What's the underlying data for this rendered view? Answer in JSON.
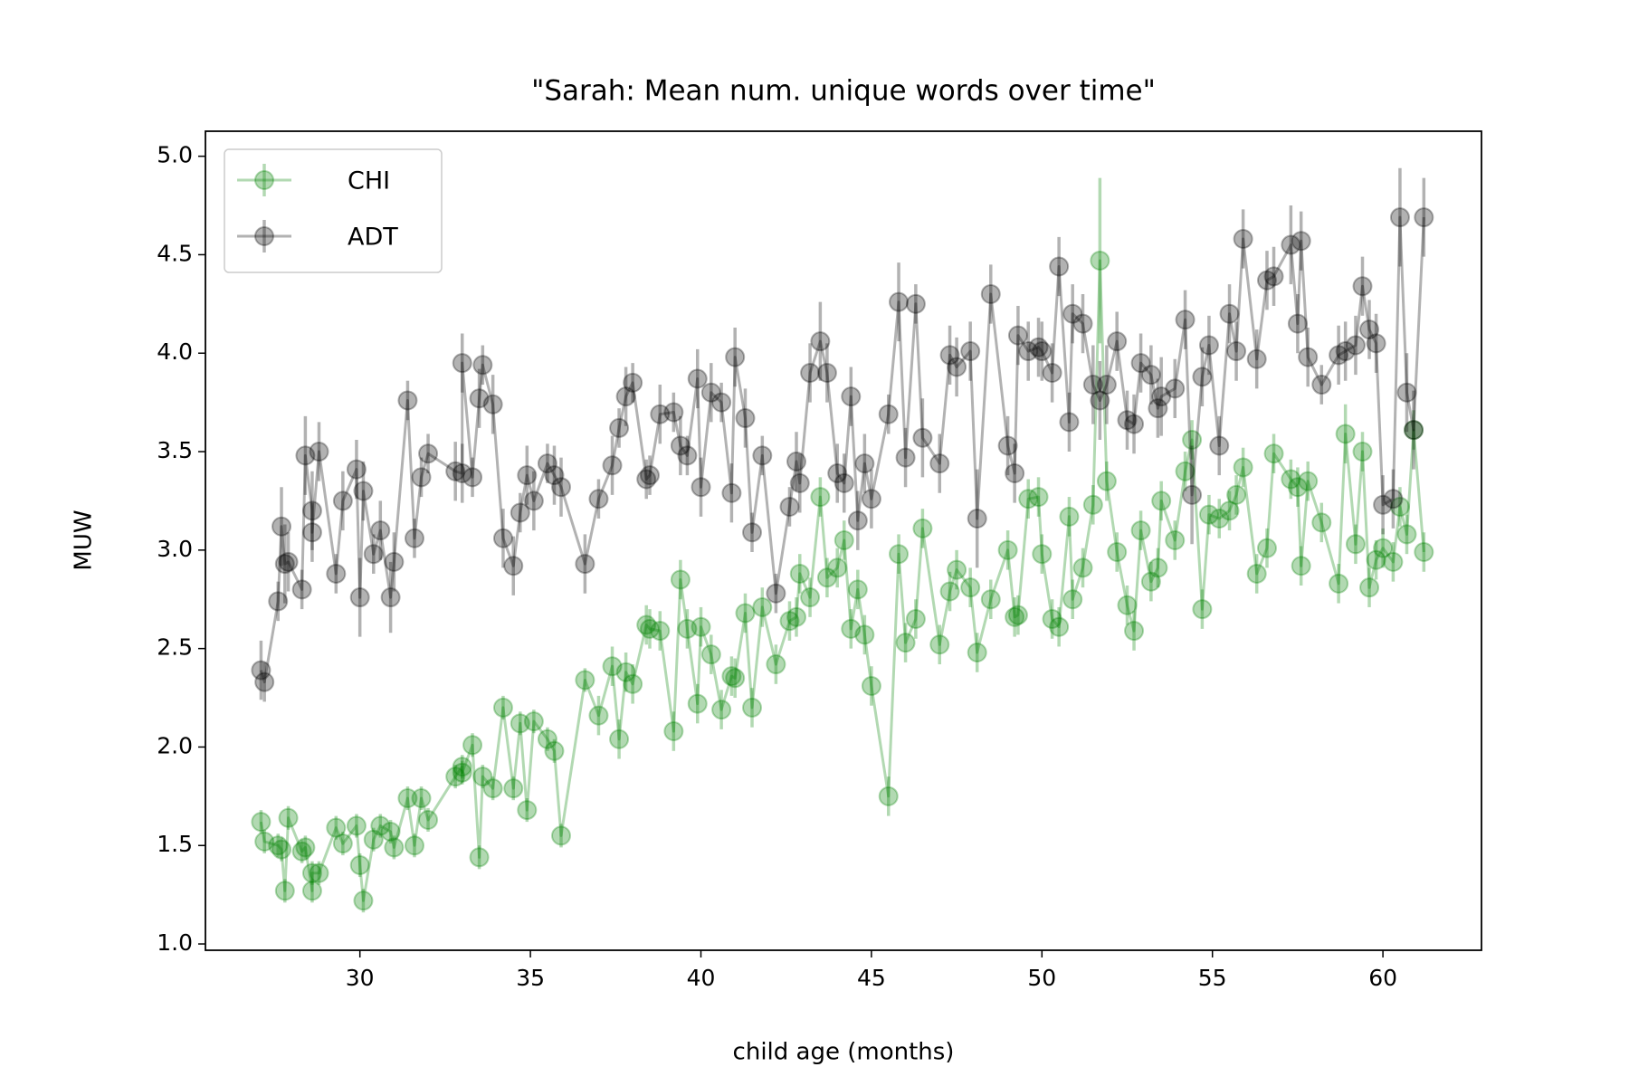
{
  "chart_data": {
    "type": "line",
    "title": "\"Sarah: Mean num. unique words over time\"",
    "x_label": "child age (months)",
    "y_label": "MUW",
    "x": [
      27.1,
      27.2,
      27.6,
      27.7,
      27.8,
      27.9,
      28.3,
      28.4,
      28.6,
      28.6,
      28.8,
      29.3,
      29.5,
      29.9,
      30.0,
      30.1,
      30.4,
      30.6,
      30.9,
      31.0,
      31.4,
      31.6,
      31.8,
      32.0,
      32.8,
      33.0,
      33.0,
      33.3,
      33.5,
      33.6,
      33.9,
      34.2,
      34.5,
      34.7,
      34.9,
      35.1,
      35.5,
      35.7,
      35.9,
      36.6,
      37.0,
      37.4,
      37.6,
      37.8,
      38.0,
      38.4,
      38.5,
      38.8,
      39.2,
      39.4,
      39.6,
      39.9,
      40.0,
      40.3,
      40.6,
      40.9,
      41.0,
      41.3,
      41.5,
      41.8,
      42.2,
      42.6,
      42.8,
      42.9,
      43.2,
      43.5,
      43.7,
      44.0,
      44.2,
      44.4,
      44.6,
      44.8,
      45.0,
      45.5,
      45.8,
      46.0,
      46.3,
      46.5,
      47.0,
      47.3,
      47.5,
      47.9,
      48.1,
      48.5,
      49.0,
      49.2,
      49.3,
      49.6,
      49.9,
      50.0,
      50.3,
      50.5,
      50.8,
      50.9,
      51.2,
      51.5,
      51.7,
      51.9,
      52.2,
      52.5,
      52.7,
      52.9,
      53.2,
      53.4,
      53.5,
      53.9,
      54.2,
      54.4,
      54.7,
      54.9,
      55.2,
      55.5,
      55.7,
      55.9,
      56.3,
      56.6,
      56.8,
      57.3,
      57.5,
      57.6,
      57.8,
      58.2,
      58.7,
      58.9,
      59.2,
      59.4,
      59.6,
      59.8,
      60.0,
      60.3,
      60.5,
      60.7,
      60.9,
      61.2
    ],
    "series": [
      {
        "name": "CHI",
        "color": "#008000",
        "values": [
          1.62,
          1.52,
          1.5,
          1.48,
          1.27,
          1.64,
          1.47,
          1.49,
          1.27,
          1.36,
          1.36,
          1.59,
          1.51,
          1.6,
          1.4,
          1.22,
          1.53,
          1.6,
          1.57,
          1.49,
          1.74,
          1.5,
          1.74,
          1.63,
          1.85,
          1.9,
          1.87,
          2.01,
          1.44,
          1.85,
          1.79,
          2.2,
          1.79,
          2.12,
          1.68,
          2.13,
          2.04,
          1.98,
          1.55,
          2.34,
          2.16,
          2.41,
          2.04,
          2.38,
          2.32,
          2.62,
          2.6,
          2.59,
          2.08,
          2.85,
          2.6,
          2.22,
          2.61,
          2.47,
          2.19,
          2.36,
          2.35,
          2.68,
          2.2,
          2.71,
          2.42,
          2.64,
          2.66,
          2.88,
          2.76,
          3.27,
          2.86,
          2.91,
          3.05,
          2.6,
          2.8,
          2.57,
          2.31,
          1.75,
          2.98,
          2.53,
          2.65,
          3.11,
          2.52,
          2.79,
          2.9,
          2.81,
          2.48,
          2.75,
          3.0,
          2.66,
          2.67,
          3.26,
          3.27,
          2.98,
          2.65,
          2.61,
          3.17,
          2.75,
          2.91,
          3.23,
          4.47,
          3.35,
          2.99,
          2.72,
          2.59,
          3.1,
          2.84,
          2.91,
          3.25,
          3.05,
          3.4,
          3.56,
          2.7,
          3.18,
          3.16,
          3.2,
          3.28,
          3.42,
          2.88,
          3.01,
          3.49,
          3.36,
          3.32,
          2.92,
          3.35,
          3.14,
          2.83,
          3.59,
          3.03,
          3.5,
          2.81,
          2.95,
          3.01,
          2.94,
          3.22,
          3.08,
          3.61,
          2.99
        ],
        "errors": [
          0.06,
          0.06,
          0.06,
          0.06,
          0.06,
          0.06,
          0.06,
          0.06,
          0.06,
          0.06,
          0.06,
          0.06,
          0.06,
          0.06,
          0.06,
          0.06,
          0.06,
          0.06,
          0.06,
          0.06,
          0.06,
          0.06,
          0.06,
          0.06,
          0.06,
          0.06,
          0.06,
          0.06,
          0.06,
          0.06,
          0.06,
          0.06,
          0.06,
          0.06,
          0.06,
          0.06,
          0.06,
          0.06,
          0.06,
          0.06,
          0.1,
          0.1,
          0.1,
          0.1,
          0.1,
          0.1,
          0.1,
          0.1,
          0.1,
          0.1,
          0.1,
          0.1,
          0.1,
          0.1,
          0.1,
          0.1,
          0.1,
          0.1,
          0.1,
          0.1,
          0.1,
          0.1,
          0.1,
          0.1,
          0.1,
          0.1,
          0.1,
          0.1,
          0.1,
          0.1,
          0.1,
          0.1,
          0.1,
          0.1,
          0.1,
          0.1,
          0.1,
          0.1,
          0.1,
          0.1,
          0.1,
          0.1,
          0.1,
          0.1,
          0.1,
          0.1,
          0.1,
          0.1,
          0.1,
          0.1,
          0.1,
          0.1,
          0.1,
          0.1,
          0.1,
          0.1,
          0.42,
          0.1,
          0.1,
          0.1,
          0.1,
          0.1,
          0.1,
          0.1,
          0.1,
          0.1,
          0.1,
          0.1,
          0.1,
          0.1,
          0.1,
          0.1,
          0.1,
          0.1,
          0.1,
          0.1,
          0.1,
          0.1,
          0.1,
          0.1,
          0.1,
          0.1,
          0.1,
          0.15,
          0.1,
          0.1,
          0.1,
          0.1,
          0.1,
          0.1,
          0.1,
          0.1,
          0.1,
          0.1
        ]
      },
      {
        "name": "ADT",
        "color": "#000000",
        "values": [
          2.39,
          2.33,
          2.74,
          3.12,
          2.93,
          2.94,
          2.8,
          3.48,
          3.2,
          3.09,
          3.5,
          2.88,
          3.25,
          3.41,
          2.76,
          3.3,
          2.98,
          3.1,
          2.76,
          2.94,
          3.76,
          3.06,
          3.37,
          3.49,
          3.4,
          3.39,
          3.95,
          3.37,
          3.77,
          3.94,
          3.74,
          3.06,
          2.92,
          3.19,
          3.38,
          3.25,
          3.44,
          3.38,
          3.32,
          2.93,
          3.26,
          3.43,
          3.62,
          3.78,
          3.85,
          3.36,
          3.38,
          3.69,
          3.7,
          3.53,
          3.48,
          3.87,
          3.32,
          3.8,
          3.75,
          3.29,
          3.98,
          3.67,
          3.09,
          3.48,
          2.78,
          3.22,
          3.45,
          3.34,
          3.9,
          4.06,
          3.9,
          3.39,
          3.34,
          3.78,
          3.15,
          3.44,
          3.26,
          3.69,
          4.26,
          3.47,
          4.25,
          3.57,
          3.44,
          3.99,
          3.93,
          4.01,
          3.16,
          4.3,
          3.53,
          3.39,
          4.09,
          4.01,
          4.03,
          4.01,
          3.9,
          4.44,
          3.65,
          4.2,
          4.15,
          3.84,
          3.76,
          3.84,
          4.06,
          3.66,
          3.64,
          3.95,
          3.89,
          3.72,
          3.78,
          3.82,
          4.17,
          3.28,
          3.88,
          4.04,
          3.53,
          4.2,
          4.01,
          4.58,
          3.97,
          4.37,
          4.39,
          4.55,
          4.15,
          4.57,
          3.98,
          3.84,
          3.99,
          4.01,
          4.04,
          4.34,
          4.12,
          4.05,
          3.23,
          3.26,
          4.69,
          3.8,
          3.61,
          4.69
        ],
        "errors": [
          0.15,
          0.1,
          0.1,
          0.2,
          0.2,
          0.15,
          0.1,
          0.2,
          0.2,
          0.15,
          0.15,
          0.1,
          0.15,
          0.15,
          0.2,
          0.15,
          0.1,
          0.15,
          0.18,
          0.15,
          0.1,
          0.1,
          0.1,
          0.1,
          0.15,
          0.15,
          0.15,
          0.1,
          0.15,
          0.1,
          0.15,
          0.15,
          0.15,
          0.1,
          0.15,
          0.15,
          0.1,
          0.15,
          0.15,
          0.15,
          0.1,
          0.15,
          0.1,
          0.15,
          0.1,
          0.1,
          0.1,
          0.15,
          0.1,
          0.15,
          0.1,
          0.15,
          0.15,
          0.15,
          0.1,
          0.15,
          0.15,
          0.15,
          0.1,
          0.1,
          0.1,
          0.1,
          0.15,
          0.15,
          0.15,
          0.2,
          0.15,
          0.15,
          0.15,
          0.15,
          0.15,
          0.15,
          0.15,
          0.1,
          0.2,
          0.15,
          0.1,
          0.2,
          0.15,
          0.15,
          0.15,
          0.15,
          0.25,
          0.15,
          0.15,
          0.15,
          0.15,
          0.15,
          0.15,
          0.15,
          0.15,
          0.15,
          0.15,
          0.15,
          0.15,
          0.2,
          0.2,
          0.2,
          0.15,
          0.15,
          0.15,
          0.15,
          0.15,
          0.15,
          0.2,
          0.15,
          0.15,
          0.25,
          0.15,
          0.15,
          0.15,
          0.15,
          0.15,
          0.15,
          0.15,
          0.15,
          0.15,
          0.2,
          0.15,
          0.15,
          0.15,
          0.1,
          0.15,
          0.15,
          0.15,
          0.15,
          0.15,
          0.15,
          0.15,
          0.15,
          0.25,
          0.2,
          0.2,
          0.2
        ]
      }
    ],
    "alpha": 0.3,
    "xlim": [
      25.47,
      62.89
    ],
    "ylim": [
      0.968,
      5.127
    ],
    "xticks": [
      30,
      35,
      40,
      45,
      50,
      55,
      60
    ],
    "yticks": [
      {
        "value": 1.0,
        "label": "1.0"
      },
      1.5,
      {
        "value": 2.0,
        "label": "2.0"
      },
      2.5,
      {
        "value": 3.0,
        "label": "3.0"
      },
      3.5,
      {
        "value": 4.0,
        "label": "4.0"
      },
      4.5,
      {
        "value": 5.0,
        "label": "5.0"
      }
    ],
    "grid": false,
    "legend": "upper left"
  }
}
